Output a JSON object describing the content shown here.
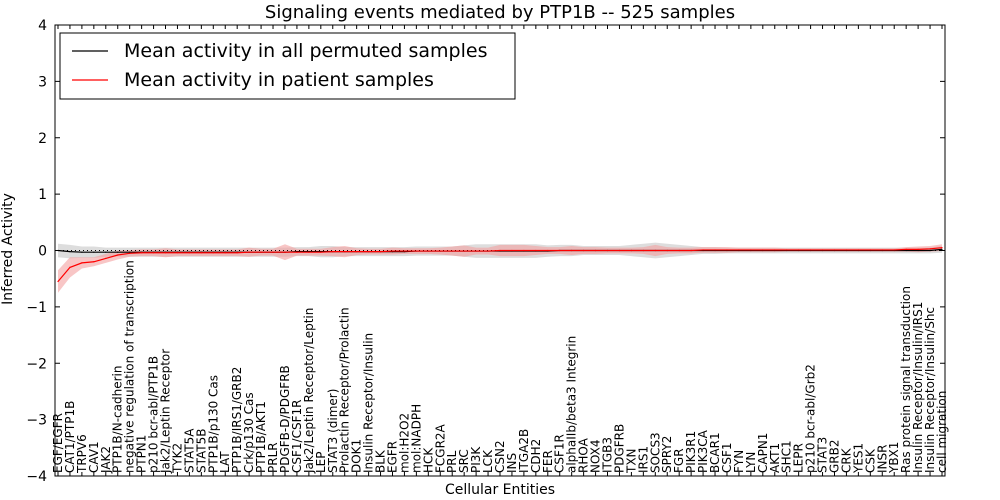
{
  "chart_data": {
    "type": "line",
    "title": "Signaling events mediated by PTP1B -- 525 samples",
    "xlabel": "Cellular Entities",
    "ylabel": "Inferred Activity",
    "ylim": [
      -4,
      4
    ],
    "yticks": [
      -4,
      -3,
      -2,
      -1,
      0,
      1,
      2,
      3,
      4
    ],
    "ytick_labels": [
      "−4",
      "−3",
      "−2",
      "−1",
      "0",
      "1",
      "2",
      "3",
      "4"
    ],
    "legend_position": "top-left",
    "categories": [
      "EGF/EGFR",
      "CAT1/PTP1B",
      "TRPV6",
      "CAV1",
      "JAK2",
      "PTP1B/N-cadherin",
      "negative regulation of transcription",
      "PTPN1",
      "p210 bcr-abl/PTP1B",
      "Jak2/Leptin Receptor",
      "TYK2",
      "STAT5A",
      "STAT5B",
      "PTP1B/p130 Cas",
      "LAT",
      "PTP1B/IRS1/GRB2",
      "Crk/p130 Cas",
      "PTP1B/AKT1",
      "PRLR",
      "PDGFB-D/PDGFRB",
      "CSF1/CSF1R",
      "Jak2/Leptin Receptor/Leptin",
      "LEP",
      "STAT3 (dimer)",
      "Prolactin Receptor/Prolactin",
      "DOK1",
      "Insulin Receptor/Insulin",
      "BLK",
      "EGFR",
      "mol:H2O2",
      "mol:NADPH",
      "HCK",
      "FCGR2A",
      "PRL",
      "SRC",
      "PI3K",
      "LCK",
      "CSN2",
      "INS",
      "ITGA2B",
      "CDH2",
      "FER",
      "CSF1R",
      "alphaIIb/beta3 Integrin",
      "RHOA",
      "NOX4",
      "ITGB3",
      "PDGFRB",
      "TXN",
      "IRS1",
      "SOCS3",
      "SPRY2",
      "FGR",
      "PIK3R1",
      "PIK3CA",
      "BCAR1",
      "CSF1",
      "FYN",
      "LYN",
      "CAPN1",
      "AKT1",
      "SHC1",
      "LEPR",
      "p210 bcr-abl/Grb2",
      "STAT3",
      "GRB2",
      "CRK",
      "YES1",
      "CSK",
      "INSR",
      "YBX1",
      "Ras protein signal transduction",
      "Insulin Receptor/Insulin/IRS1",
      "Insulin Receptor/Insulin/Shc",
      "cell migration"
    ],
    "series": [
      {
        "name": "Mean activity in all permuted samples",
        "color": "#000000",
        "band_color": "#bbbbbb",
        "values": [
          0.0,
          -0.02,
          -0.03,
          -0.03,
          -0.03,
          -0.03,
          -0.03,
          -0.03,
          -0.03,
          -0.03,
          -0.03,
          -0.03,
          -0.03,
          -0.03,
          -0.03,
          -0.03,
          -0.03,
          -0.03,
          -0.03,
          -0.03,
          -0.02,
          -0.02,
          -0.02,
          -0.02,
          -0.02,
          -0.02,
          -0.02,
          -0.02,
          -0.02,
          -0.02,
          -0.01,
          -0.01,
          -0.01,
          -0.01,
          -0.01,
          -0.01,
          -0.01,
          -0.01,
          -0.01,
          -0.01,
          -0.01,
          -0.01,
          0.0,
          0.0,
          0.0,
          0.0,
          0.0,
          0.0,
          0.0,
          0.0,
          0.0,
          0.0,
          0.0,
          0.0,
          0.0,
          0.0,
          0.0,
          0.0,
          0.0,
          0.0,
          0.0,
          0.0,
          0.0,
          0.0,
          0.0,
          0.0,
          0.0,
          0.0,
          0.0,
          0.0,
          0.0,
          0.0,
          0.0,
          0.0,
          0.02
        ],
        "band": [
          0.12,
          0.12,
          0.1,
          0.1,
          0.08,
          0.08,
          0.08,
          0.08,
          0.08,
          0.08,
          0.08,
          0.08,
          0.08,
          0.08,
          0.08,
          0.08,
          0.08,
          0.08,
          0.08,
          0.08,
          0.08,
          0.08,
          0.1,
          0.1,
          0.08,
          0.08,
          0.08,
          0.08,
          0.08,
          0.08,
          0.08,
          0.08,
          0.08,
          0.08,
          0.1,
          0.12,
          0.12,
          0.12,
          0.12,
          0.12,
          0.12,
          0.1,
          0.1,
          0.1,
          0.08,
          0.08,
          0.08,
          0.08,
          0.1,
          0.12,
          0.14,
          0.12,
          0.1,
          0.08,
          0.06,
          0.06,
          0.05,
          0.05,
          0.05,
          0.05,
          0.05,
          0.05,
          0.05,
          0.05,
          0.05,
          0.05,
          0.05,
          0.05,
          0.05,
          0.05,
          0.05,
          0.05,
          0.05,
          0.05,
          0.06
        ]
      },
      {
        "name": "Mean activity in patient samples",
        "color": "#ff0000",
        "band_color": "#f4a0a0",
        "values": [
          -0.55,
          -0.3,
          -0.22,
          -0.2,
          -0.14,
          -0.08,
          -0.05,
          -0.04,
          -0.04,
          -0.04,
          -0.04,
          -0.04,
          -0.04,
          -0.04,
          -0.04,
          -0.04,
          -0.03,
          -0.03,
          -0.03,
          -0.03,
          -0.03,
          -0.03,
          -0.03,
          -0.02,
          -0.02,
          -0.02,
          -0.02,
          -0.02,
          -0.01,
          -0.01,
          -0.01,
          -0.01,
          -0.01,
          -0.01,
          -0.01,
          -0.01,
          -0.01,
          0.0,
          0.0,
          0.0,
          0.0,
          0.0,
          0.0,
          0.0,
          0.0,
          0.0,
          0.0,
          0.0,
          0.0,
          0.0,
          0.0,
          0.0,
          0.0,
          0.0,
          0.01,
          0.01,
          0.01,
          0.01,
          0.01,
          0.01,
          0.01,
          0.01,
          0.01,
          0.01,
          0.01,
          0.01,
          0.01,
          0.01,
          0.01,
          0.01,
          0.01,
          0.02,
          0.02,
          0.03,
          0.05
        ],
        "band": [
          0.2,
          0.18,
          0.1,
          0.08,
          0.08,
          0.08,
          0.06,
          0.06,
          0.06,
          0.08,
          0.06,
          0.06,
          0.06,
          0.06,
          0.06,
          0.06,
          0.08,
          0.06,
          0.06,
          0.14,
          0.06,
          0.06,
          0.06,
          0.08,
          0.1,
          0.06,
          0.05,
          0.05,
          0.06,
          0.05,
          0.05,
          0.05,
          0.06,
          0.08,
          0.1,
          0.06,
          0.06,
          0.1,
          0.1,
          0.1,
          0.08,
          0.06,
          0.06,
          0.08,
          0.06,
          0.06,
          0.05,
          0.05,
          0.05,
          0.06,
          0.1,
          0.06,
          0.05,
          0.05,
          0.05,
          0.05,
          0.05,
          0.04,
          0.04,
          0.04,
          0.04,
          0.03,
          0.03,
          0.03,
          0.03,
          0.03,
          0.03,
          0.03,
          0.03,
          0.03,
          0.03,
          0.04,
          0.05,
          0.05,
          0.06
        ]
      }
    ]
  }
}
